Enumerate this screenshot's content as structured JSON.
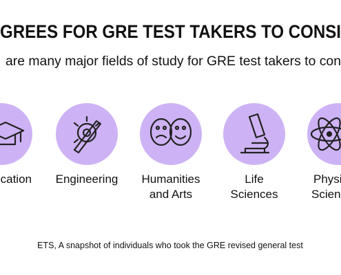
{
  "header": {
    "title": "GREES FOR GRE TEST TAKERS TO CONSI",
    "subtitle": "are many major fields of study for GRE test takers to con"
  },
  "fields": [
    {
      "label": [
        "ucation"
      ]
    },
    {
      "label": [
        "Engineering"
      ]
    },
    {
      "label": [
        "Humanities",
        "and Arts"
      ]
    },
    {
      "label": [
        "Life",
        "Sciences"
      ]
    },
    {
      "label": [
        "Physi",
        "Scien"
      ]
    }
  ],
  "footer": {
    "source": "ETS, A snapshot of individuals who took the GRE revised general test"
  }
}
